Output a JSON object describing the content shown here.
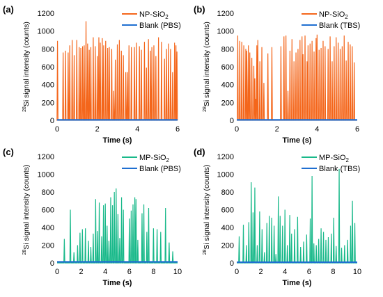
{
  "shared": {
    "ylabel_sup": "28",
    "ylabel_rest": "Si signal intensity (counts)",
    "xlabel": "Time (s)"
  },
  "chart_data": [
    {
      "panel_label": "(a)",
      "type": "line",
      "xlim": [
        0,
        6
      ],
      "ylim": [
        0,
        1200
      ],
      "xticks": [
        "0",
        "2",
        "4",
        "6"
      ],
      "yticks": [
        "0",
        "200",
        "400",
        "600",
        "800",
        "1000",
        "1200"
      ],
      "xlabel": "Time (s)",
      "ylabel": "28Si signal intensity (counts)",
      "legend": {
        "placement": "top-right"
      },
      "series": [
        {
          "name_main": "NP-SiO",
          "name_sub": "2",
          "color": "#f4661b",
          "spikes": [
            [
              0.02,
              890
            ],
            [
              0.3,
              760
            ],
            [
              0.42,
              780
            ],
            [
              0.55,
              760
            ],
            [
              0.63,
              840
            ],
            [
              0.75,
              900
            ],
            [
              0.85,
              730
            ],
            [
              0.98,
              900
            ],
            [
              1.1,
              820
            ],
            [
              1.18,
              810
            ],
            [
              1.27,
              830
            ],
            [
              1.35,
              840
            ],
            [
              1.44,
              1110
            ],
            [
              1.52,
              860
            ],
            [
              1.6,
              790
            ],
            [
              1.68,
              820
            ],
            [
              1.8,
              930
            ],
            [
              1.9,
              830
            ],
            [
              2.0,
              720
            ],
            [
              2.08,
              930
            ],
            [
              2.15,
              870
            ],
            [
              2.25,
              920
            ],
            [
              2.32,
              840
            ],
            [
              2.42,
              890
            ],
            [
              2.52,
              810
            ],
            [
              2.6,
              820
            ],
            [
              2.72,
              800
            ],
            [
              2.82,
              330
            ],
            [
              2.9,
              680
            ],
            [
              3.0,
              850
            ],
            [
              3.1,
              900
            ],
            [
              3.2,
              780
            ],
            [
              3.3,
              730
            ],
            [
              3.42,
              540
            ],
            [
              3.5,
              540
            ],
            [
              3.58,
              840
            ],
            [
              3.7,
              820
            ],
            [
              3.85,
              820
            ],
            [
              3.95,
              870
            ],
            [
              4.1,
              830
            ],
            [
              4.2,
              790
            ],
            [
              4.35,
              880
            ],
            [
              4.45,
              590
            ],
            [
              4.55,
              910
            ],
            [
              4.65,
              780
            ],
            [
              4.72,
              820
            ],
            [
              4.82,
              840
            ],
            [
              4.92,
              720
            ],
            [
              5.05,
              930
            ],
            [
              5.2,
              880
            ],
            [
              5.35,
              690
            ],
            [
              5.45,
              800
            ],
            [
              5.55,
              860
            ],
            [
              5.65,
              800
            ],
            [
              5.75,
              540
            ],
            [
              5.85,
              870
            ],
            [
              5.92,
              840
            ],
            [
              5.97,
              770
            ]
          ]
        },
        {
          "name_main": "Blank (PBS)",
          "name_sub": "",
          "color": "#1f6fd1",
          "baseline": 5
        }
      ]
    },
    {
      "panel_label": "(b)",
      "type": "line",
      "xlim": [
        0,
        6
      ],
      "ylim": [
        0,
        1200
      ],
      "xticks": [
        "0",
        "2",
        "4",
        "6"
      ],
      "yticks": [
        "0",
        "200",
        "400",
        "600",
        "800",
        "1000",
        "1200"
      ],
      "xlabel": "Time (s)",
      "ylabel": "28Si signal intensity (counts)",
      "legend": {
        "placement": "top-right"
      },
      "series": [
        {
          "name_main": "NP-SiO",
          "name_sub": "2",
          "color": "#f4661b",
          "spikes": [
            [
              0.05,
              950
            ],
            [
              0.15,
              890
            ],
            [
              0.25,
              880
            ],
            [
              0.35,
              840
            ],
            [
              0.45,
              800
            ],
            [
              0.5,
              780
            ],
            [
              0.58,
              840
            ],
            [
              0.65,
              760
            ],
            [
              0.75,
              700
            ],
            [
              0.85,
              610
            ],
            [
              0.9,
              470
            ],
            [
              0.95,
              240
            ],
            [
              1.0,
              840
            ],
            [
              1.05,
              900
            ],
            [
              1.15,
              660
            ],
            [
              1.25,
              820
            ],
            [
              1.35,
              420
            ],
            [
              1.55,
              750
            ],
            [
              1.75,
              820
            ],
            [
              2.2,
              830
            ],
            [
              2.35,
              940
            ],
            [
              2.45,
              950
            ],
            [
              2.55,
              330
            ],
            [
              2.65,
              780
            ],
            [
              2.75,
              910
            ],
            [
              2.85,
              660
            ],
            [
              2.95,
              760
            ],
            [
              3.05,
              800
            ],
            [
              3.15,
              900
            ],
            [
              3.25,
              940
            ],
            [
              3.3,
              740
            ],
            [
              3.4,
              950
            ],
            [
              3.5,
              660
            ],
            [
              3.55,
              840
            ],
            [
              3.65,
              860
            ],
            [
              3.75,
              890
            ],
            [
              3.85,
              770
            ],
            [
              3.95,
              920
            ],
            [
              4.0,
              960
            ],
            [
              4.1,
              790
            ],
            [
              4.2,
              810
            ],
            [
              4.3,
              890
            ],
            [
              4.4,
              830
            ],
            [
              4.55,
              800
            ],
            [
              4.65,
              940
            ],
            [
              4.75,
              660
            ],
            [
              4.85,
              830
            ],
            [
              4.95,
              930
            ],
            [
              5.05,
              870
            ],
            [
              5.15,
              800
            ],
            [
              5.25,
              830
            ],
            [
              5.35,
              950
            ],
            [
              5.45,
              670
            ],
            [
              5.55,
              880
            ],
            [
              5.65,
              850
            ],
            [
              5.75,
              830
            ],
            [
              5.85,
              650
            ]
          ]
        },
        {
          "name_main": "Blank (TBS)",
          "name_sub": "",
          "color": "#1f6fd1",
          "baseline": 5
        }
      ]
    },
    {
      "panel_label": "(c)",
      "type": "line",
      "xlim": [
        0,
        10
      ],
      "ylim": [
        0,
        1200
      ],
      "xticks": [
        "0",
        "2",
        "4",
        "6",
        "8",
        "10"
      ],
      "yticks": [
        "0",
        "200",
        "400",
        "600",
        "800",
        "1000",
        "1200"
      ],
      "xlabel": "Time (s)",
      "ylabel": "28Si signal intensity (counts)",
      "legend": {
        "placement": "top-right"
      },
      "series": [
        {
          "name_main": "MP-SiO",
          "name_sub": "2",
          "color": "#19b98a",
          "spikes": [
            [
              0.6,
              270
            ],
            [
              1.1,
              600
            ],
            [
              1.4,
              120
            ],
            [
              1.7,
              200
            ],
            [
              1.9,
              340
            ],
            [
              2.1,
              380
            ],
            [
              2.35,
              390
            ],
            [
              2.6,
              250
            ],
            [
              2.8,
              180
            ],
            [
              3.0,
              330
            ],
            [
              3.2,
              720
            ],
            [
              3.35,
              360
            ],
            [
              3.5,
              680
            ],
            [
              3.7,
              300
            ],
            [
              3.85,
              650
            ],
            [
              4.0,
              670
            ],
            [
              4.15,
              420
            ],
            [
              4.3,
              250
            ],
            [
              4.45,
              740
            ],
            [
              4.6,
              650
            ],
            [
              4.75,
              800
            ],
            [
              4.9,
              840
            ],
            [
              5.05,
              550
            ],
            [
              5.2,
              280
            ],
            [
              5.35,
              740
            ],
            [
              5.5,
              600
            ],
            [
              6.0,
              500
            ],
            [
              6.15,
              590
            ],
            [
              6.3,
              660
            ],
            [
              6.45,
              740
            ],
            [
              6.55,
              720
            ],
            [
              6.7,
              260
            ],
            [
              7.05,
              560
            ],
            [
              7.2,
              660
            ],
            [
              7.45,
              350
            ],
            [
              7.6,
              620
            ],
            [
              8.0,
              390
            ],
            [
              8.3,
              380
            ],
            [
              8.6,
              350
            ],
            [
              9.0,
              620
            ],
            [
              9.3,
              230
            ],
            [
              9.6,
              130
            ]
          ]
        },
        {
          "name_main": "Blank (PBS)",
          "name_sub": "",
          "color": "#1f6fd1",
          "baseline": 12
        }
      ]
    },
    {
      "panel_label": "(d)",
      "type": "line",
      "xlim": [
        0,
        10
      ],
      "ylim": [
        0,
        1200
      ],
      "xticks": [
        "0",
        "2",
        "4",
        "6",
        "8",
        "10"
      ],
      "yticks": [
        "0",
        "200",
        "400",
        "600",
        "800",
        "1000",
        "1200"
      ],
      "xlabel": "Time (s)",
      "ylabel": "28Si signal intensity (counts)",
      "legend": {
        "placement": "top-right"
      },
      "series": [
        {
          "name_main": "MP-SiO",
          "name_sub": "2",
          "color": "#19b98a",
          "spikes": [
            [
              0.2,
              300
            ],
            [
              0.55,
              430
            ],
            [
              0.8,
              200
            ],
            [
              1.0,
              460
            ],
            [
              1.2,
              910
            ],
            [
              1.35,
              570
            ],
            [
              1.5,
              850
            ],
            [
              1.7,
              200
            ],
            [
              1.9,
              580
            ],
            [
              2.1,
              380
            ],
            [
              2.3,
              120
            ],
            [
              2.5,
              450
            ],
            [
              2.7,
              530
            ],
            [
              2.9,
              510
            ],
            [
              3.1,
              420
            ],
            [
              3.25,
              100
            ],
            [
              3.45,
              750
            ],
            [
              3.6,
              530
            ],
            [
              3.8,
              420
            ],
            [
              4.0,
              600
            ],
            [
              4.2,
              200
            ],
            [
              4.4,
              540
            ],
            [
              4.55,
              330
            ],
            [
              4.8,
              380
            ],
            [
              5.05,
              520
            ],
            [
              5.3,
              180
            ],
            [
              5.55,
              240
            ],
            [
              5.8,
              320
            ],
            [
              6.1,
              500
            ],
            [
              6.25,
              980
            ],
            [
              6.4,
              220
            ],
            [
              6.6,
              200
            ],
            [
              6.8,
              270
            ],
            [
              7.0,
              390
            ],
            [
              7.2,
              350
            ],
            [
              7.4,
              260
            ],
            [
              7.6,
              290
            ],
            [
              7.85,
              330
            ],
            [
              8.05,
              510
            ],
            [
              8.25,
              190
            ],
            [
              8.5,
              1060
            ],
            [
              8.7,
              170
            ],
            [
              8.95,
              200
            ],
            [
              9.2,
              260
            ],
            [
              9.45,
              420
            ],
            [
              9.6,
              700
            ],
            [
              9.8,
              450
            ]
          ]
        },
        {
          "name_main": "Blank (TBS)",
          "name_sub": "",
          "color": "#1f6fd1",
          "baseline": 8
        }
      ]
    }
  ]
}
